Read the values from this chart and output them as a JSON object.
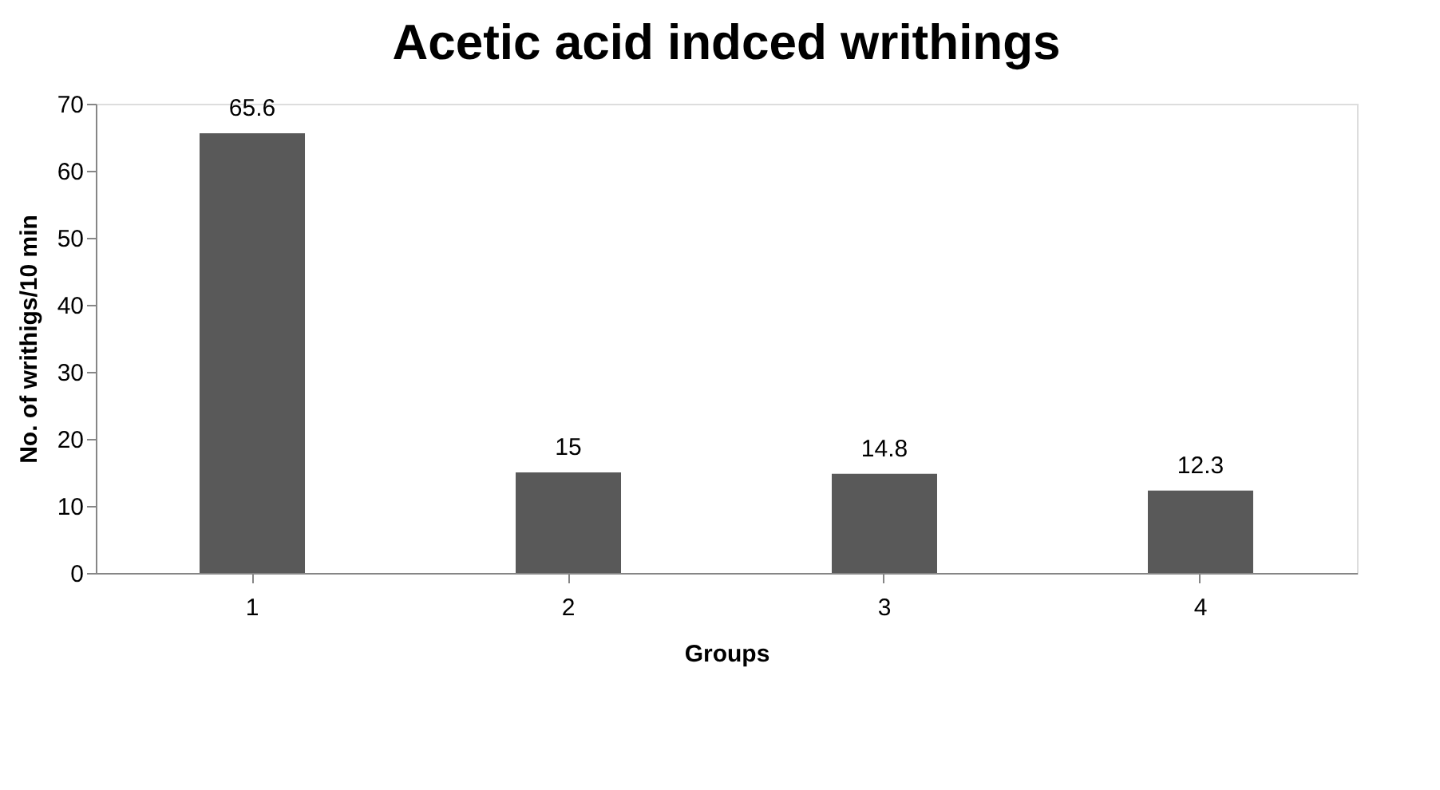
{
  "chart_data": {
    "type": "bar",
    "title": "Acetic acid indced writhings",
    "xlabel": "Groups",
    "ylabel": "No. of writhigs/10 min",
    "categories": [
      "1",
      "2",
      "3",
      "4"
    ],
    "values": [
      65.6,
      15,
      14.8,
      12.3
    ],
    "color": "#595959",
    "ylim": [
      0,
      70
    ],
    "yticks": [
      0,
      10,
      20,
      30,
      40,
      50,
      60,
      70
    ],
    "data_labels": true,
    "grid": false
  }
}
